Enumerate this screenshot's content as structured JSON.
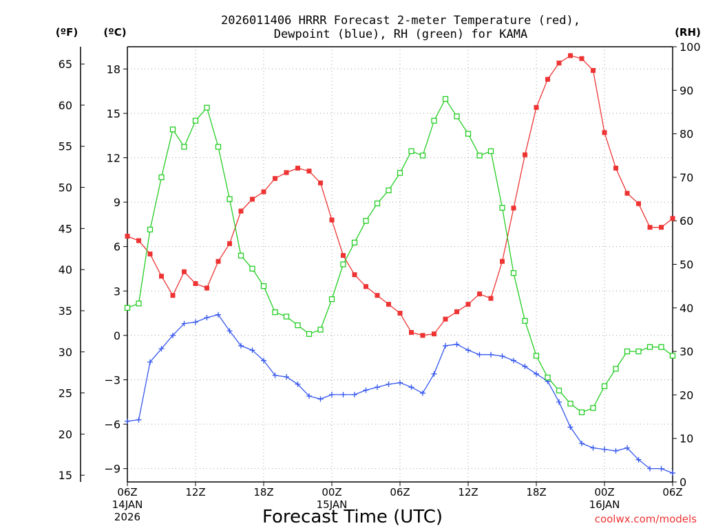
{
  "chart_data": {
    "type": "line",
    "title": "2026011406 HRRR Forecast 2-meter Temperature (red),",
    "title_line2": "Dewpoint (blue), RH (green) for KAMA",
    "xlabel": "Forecast Time (UTC)",
    "credit": "coolwx.com/models",
    "unit_labels": {
      "fahrenheit": "(ºF)",
      "celsius": "(ºC)",
      "rh": "(RH)"
    },
    "x_range": [
      0,
      48
    ],
    "celsius_range": [
      -9.9,
      19.5
    ],
    "rh_range": [
      0,
      100
    ],
    "x_ticks": [
      {
        "x": 0,
        "label": "06Z",
        "sub1": "14JAN",
        "sub2": "2026"
      },
      {
        "x": 6,
        "label": "12Z"
      },
      {
        "x": 12,
        "label": "18Z"
      },
      {
        "x": 18,
        "label": "00Z",
        "sub1": "15JAN"
      },
      {
        "x": 24,
        "label": "06Z"
      },
      {
        "x": 30,
        "label": "12Z"
      },
      {
        "x": 36,
        "label": "18Z"
      },
      {
        "x": 42,
        "label": "00Z",
        "sub1": "16JAN"
      },
      {
        "x": 48,
        "label": "06Z"
      }
    ],
    "celsius_ticks": [
      "18",
      "15",
      "12",
      "9",
      "6",
      "3",
      "0",
      "−3",
      "−6",
      "−9"
    ],
    "celsius_tick_values": [
      18,
      15,
      12,
      9,
      6,
      3,
      0,
      -3,
      -6,
      -9
    ],
    "fahrenheit_ticks": [
      "65",
      "60",
      "55",
      "50",
      "45",
      "40",
      "35",
      "30",
      "25",
      "20",
      "15"
    ],
    "fahrenheit_tick_values": [
      65,
      60,
      55,
      50,
      45,
      40,
      35,
      30,
      25,
      20,
      15
    ],
    "rh_ticks": [
      "100",
      "90",
      "80",
      "70",
      "60",
      "50",
      "40",
      "30",
      "20",
      "10",
      "0"
    ],
    "rh_tick_values": [
      100,
      90,
      80,
      70,
      60,
      50,
      40,
      30,
      20,
      10,
      0
    ],
    "series": [
      {
        "name": "Temperature",
        "axis": "celsius",
        "color": "#ee3333",
        "marker": "filled-square",
        "values": [
          6.7,
          6.4,
          5.5,
          4.0,
          2.7,
          4.3,
          3.5,
          3.2,
          5.0,
          6.2,
          8.4,
          9.2,
          9.7,
          10.6,
          11.0,
          11.3,
          11.1,
          10.3,
          7.8,
          5.4,
          4.1,
          3.3,
          2.7,
          2.1,
          1.5,
          0.2,
          0.0,
          0.1,
          1.1,
          1.6,
          2.1,
          2.8,
          2.5,
          5.0,
          8.6,
          12.2,
          15.4,
          17.3,
          18.4,
          18.9,
          18.7,
          17.9,
          13.7,
          11.3,
          9.6,
          8.9,
          7.3,
          7.3,
          7.9
        ]
      },
      {
        "name": "Dewpoint",
        "axis": "celsius",
        "color": "#3355ee",
        "marker": "plus",
        "values": [
          -5.8,
          -5.7,
          -1.8,
          -0.9,
          0.0,
          0.8,
          0.9,
          1.2,
          1.4,
          0.3,
          -0.7,
          -1.0,
          -1.7,
          -2.7,
          -2.8,
          -3.3,
          -4.1,
          -4.3,
          -4.0,
          -4.0,
          -4.0,
          -3.7,
          -3.5,
          -3.3,
          -3.2,
          -3.5,
          -3.9,
          -2.6,
          -0.7,
          -0.6,
          -1.0,
          -1.3,
          -1.3,
          -1.4,
          -1.7,
          -2.1,
          -2.6,
          -3.1,
          -4.5,
          -6.2,
          -7.3,
          -7.6,
          -7.7,
          -7.8,
          -7.6,
          -8.4,
          -9.0,
          -9.0,
          -9.3
        ]
      },
      {
        "name": "Relative Humidity",
        "axis": "rh",
        "color": "#22cc22",
        "marker": "open-square",
        "values": [
          40,
          41,
          58,
          70,
          81,
          77,
          83,
          86,
          77,
          65,
          52,
          49,
          45,
          39,
          38,
          36,
          34,
          35,
          42,
          50,
          55,
          60,
          64,
          67,
          71,
          76,
          75,
          83,
          88,
          84,
          80,
          75,
          76,
          63,
          48,
          37,
          29,
          24,
          21,
          18,
          16,
          17,
          22,
          26,
          30,
          30,
          31,
          31,
          29
        ]
      }
    ]
  }
}
